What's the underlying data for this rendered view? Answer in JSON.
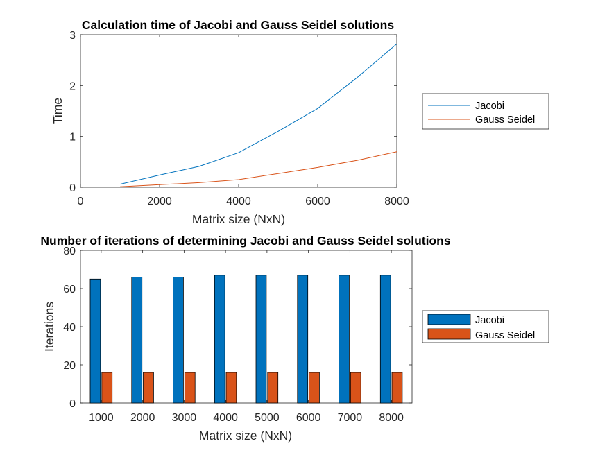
{
  "chart_data": [
    {
      "type": "line",
      "title": "Calculation time of Jacobi and Gauss Seidel solutions",
      "xlabel": "Matrix size (NxN)",
      "ylabel": "Time",
      "xlim": [
        0,
        8000
      ],
      "ylim": [
        0,
        3
      ],
      "xticks": [
        "0",
        "2000",
        "4000",
        "6000",
        "8000"
      ],
      "yticks": [
        "0",
        "1",
        "2",
        "3"
      ],
      "grid": false,
      "legend_position": "right-outside",
      "x": [
        1000,
        2000,
        3000,
        4000,
        5000,
        6000,
        7000,
        8000
      ],
      "series": [
        {
          "name": "Jacobi",
          "color": "#0072BD",
          "values": [
            0.06,
            0.24,
            0.41,
            0.68,
            1.1,
            1.55,
            2.16,
            2.82
          ]
        },
        {
          "name": "Gauss Seidel",
          "color": "#D95319",
          "values": [
            0.01,
            0.05,
            0.09,
            0.15,
            0.27,
            0.39,
            0.53,
            0.7
          ]
        }
      ]
    },
    {
      "type": "bar",
      "title": "Number of iterations of determining Jacobi and Gauss Seidel solutions",
      "xlabel": "Matrix size (NxN)",
      "ylabel": "Iterations",
      "ylim": [
        0,
        80
      ],
      "yticks": [
        "0",
        "20",
        "40",
        "60",
        "80"
      ],
      "grid": false,
      "legend_position": "right-outside",
      "categories": [
        "1000",
        "2000",
        "3000",
        "4000",
        "5000",
        "6000",
        "7000",
        "8000"
      ],
      "series": [
        {
          "name": "Jacobi",
          "color": "#0072BD",
          "values": [
            65,
            66,
            66,
            67,
            67,
            67,
            67,
            67
          ]
        },
        {
          "name": "Gauss Seidel",
          "color": "#D95319",
          "values": [
            16,
            16,
            16,
            16,
            16,
            16,
            16,
            16
          ]
        }
      ]
    }
  ]
}
